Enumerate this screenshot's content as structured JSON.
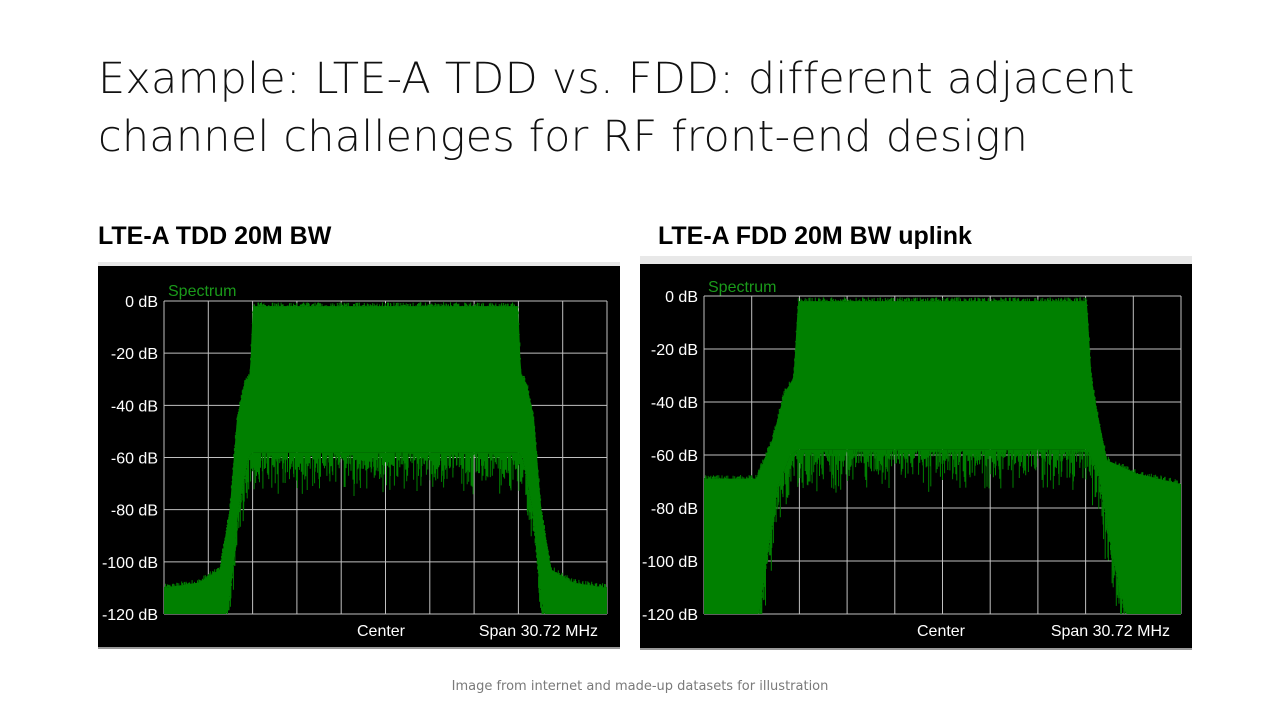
{
  "slide": {
    "title": "Example: LTE-A TDD vs. FDD: different adjacent channel challenges for RF front-end design",
    "footnote": "Image from internet and made-up datasets for illustration"
  },
  "colors": {
    "trace": "#008000",
    "trace_label": "#1a9a1a",
    "grid": "#c0c0c0",
    "plot_bg": "#000000",
    "axis_text": "#ffffff"
  },
  "chart_data": [
    {
      "type": "area",
      "heading": "LTE-A TDD 20M BW",
      "trace_label": "Spectrum",
      "yticks": [
        "0 dB",
        "-20 dB",
        "-40 dB",
        "-60 dB",
        "-80 dB",
        "-100 dB",
        "-120 dB"
      ],
      "ylim": [
        -120,
        0
      ],
      "xlim": [
        -15.36,
        15.36
      ],
      "x_unit": "MHz",
      "center_label": "Center",
      "span_label": "Span 30.72 MHz",
      "grid": true,
      "envelope_upper": [
        [
          -15.36,
          -110
        ],
        [
          -13.0,
          -108
        ],
        [
          -11.5,
          -103
        ],
        [
          -10.8,
          -80
        ],
        [
          -10.3,
          -45
        ],
        [
          -9.8,
          -32
        ],
        [
          -9.4,
          -28
        ],
        [
          -9.2,
          -2
        ],
        [
          9.2,
          -2
        ],
        [
          9.4,
          -28
        ],
        [
          9.8,
          -32
        ],
        [
          10.3,
          -45
        ],
        [
          10.8,
          -80
        ],
        [
          11.5,
          -103
        ],
        [
          13.0,
          -108
        ],
        [
          15.36,
          -110
        ]
      ],
      "envelope_lower": [
        [
          -15.36,
          -120
        ],
        [
          -11.0,
          -120
        ],
        [
          -10.6,
          -105
        ],
        [
          -10.2,
          -80
        ],
        [
          -9.5,
          -60
        ],
        [
          -9.2,
          -58
        ],
        [
          9.2,
          -58
        ],
        [
          9.5,
          -60
        ],
        [
          10.2,
          -80
        ],
        [
          10.6,
          -105
        ],
        [
          11.0,
          -120
        ],
        [
          15.36,
          -120
        ]
      ]
    },
    {
      "type": "area",
      "heading": "LTE-A FDD 20M BW uplink",
      "trace_label": "Spectrum",
      "yticks": [
        "0 dB",
        "-20 dB",
        "-40 dB",
        "-60 dB",
        "-80 dB",
        "-100 dB",
        "-120 dB"
      ],
      "ylim": [
        -120,
        0
      ],
      "xlim": [
        -15.36,
        15.36
      ],
      "x_unit": "MHz",
      "center_label": "Center",
      "span_label": "Span 30.72 MHz",
      "grid": true,
      "envelope_upper": [
        [
          -15.36,
          -69
        ],
        [
          -12.0,
          -69
        ],
        [
          -11.0,
          -55
        ],
        [
          -10.2,
          -37
        ],
        [
          -9.6,
          -31
        ],
        [
          -9.3,
          -2
        ],
        [
          9.3,
          -2
        ],
        [
          9.6,
          -31
        ],
        [
          10.0,
          -45
        ],
        [
          10.6,
          -62
        ],
        [
          12.5,
          -67
        ],
        [
          15.36,
          -71
        ]
      ],
      "envelope_lower": [
        [
          -15.36,
          -120
        ],
        [
          -11.8,
          -120
        ],
        [
          -11.4,
          -103
        ],
        [
          -10.6,
          -72
        ],
        [
          -9.8,
          -60
        ],
        [
          -9.3,
          -58
        ],
        [
          9.3,
          -58
        ],
        [
          10.0,
          -66
        ],
        [
          11.0,
          -100
        ],
        [
          11.8,
          -120
        ],
        [
          15.36,
          -120
        ]
      ]
    }
  ]
}
